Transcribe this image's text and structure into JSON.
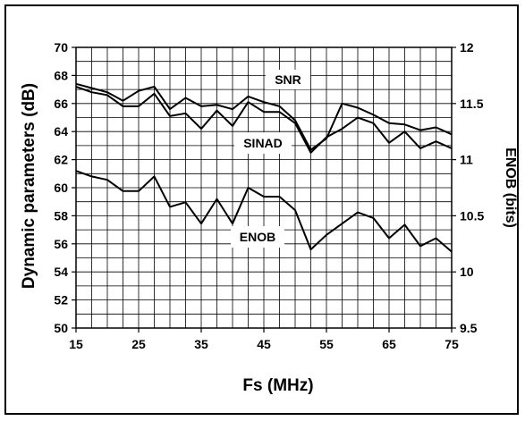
{
  "chart_data": {
    "type": "line",
    "xlabel": "Fs (MHz)",
    "ylabel": "Dynamic parameters (dB)",
    "y2label": "ENOB (bits)",
    "xlim": [
      15,
      75
    ],
    "ylim": [
      50,
      70
    ],
    "y2lim": [
      9.5,
      12
    ],
    "x_ticks": [
      "15",
      "25",
      "35",
      "45",
      "55",
      "65",
      "75"
    ],
    "y_ticks": [
      "50",
      "52",
      "54",
      "56",
      "58",
      "60",
      "62",
      "64",
      "66",
      "68",
      "70"
    ],
    "y2_ticks": [
      "9.5",
      "10",
      "10.5",
      "11",
      "11.5",
      "12"
    ],
    "grid": true,
    "x": [
      15,
      17.5,
      20,
      22.5,
      25,
      27.5,
      30,
      32.5,
      35,
      37.5,
      40,
      42.5,
      45,
      47.5,
      50,
      52.5,
      55,
      57.5,
      60,
      62.5,
      65,
      67.5,
      70,
      72.5,
      75
    ],
    "series": [
      {
        "name": "SNR",
        "axis": "left",
        "values": [
          67.4,
          67.1,
          66.8,
          66.2,
          66.9,
          67.2,
          65.6,
          66.4,
          65.8,
          65.9,
          65.6,
          66.5,
          66.1,
          65.8,
          64.8,
          62.7,
          63.5,
          66.0,
          65.7,
          65.2,
          64.6,
          64.5,
          64.1,
          64.3,
          63.8
        ]
      },
      {
        "name": "SINAD",
        "axis": "left",
        "values": [
          67.2,
          66.8,
          66.6,
          65.8,
          65.8,
          66.7,
          65.1,
          65.3,
          64.2,
          65.5,
          64.4,
          66.1,
          65.4,
          65.4,
          64.6,
          62.5,
          63.6,
          64.2,
          65.0,
          64.6,
          63.2,
          64.0,
          62.8,
          63.3,
          62.8
        ]
      },
      {
        "name": "ENOB",
        "axis": "right",
        "values": [
          10.9,
          10.85,
          10.82,
          10.72,
          10.72,
          10.85,
          10.58,
          10.62,
          10.43,
          10.65,
          10.43,
          10.75,
          10.67,
          10.67,
          10.55,
          10.2,
          10.33,
          10.43,
          10.53,
          10.48,
          10.3,
          10.42,
          10.23,
          10.3,
          10.18
        ]
      }
    ],
    "colors": {
      "line": "#000000",
      "grid": "#000000",
      "background": "#ffffff"
    }
  }
}
